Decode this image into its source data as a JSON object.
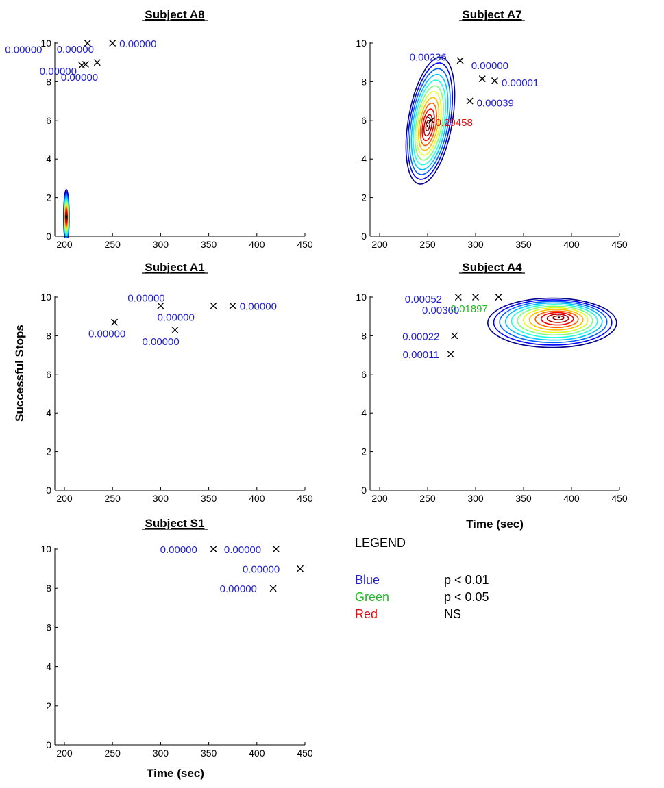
{
  "figure": {
    "ylabel": "Successful Stops",
    "xlabel": "Time (sec)"
  },
  "legend": {
    "title": "LEGEND",
    "entries": [
      {
        "label": "Blue",
        "desc": "p < 0.01",
        "color": "#1f1fd0"
      },
      {
        "label": "Green",
        "desc": "p < 0.05",
        "color": "#22bb22"
      },
      {
        "label": "Red",
        "desc": "NS",
        "color": "#dd1111"
      }
    ]
  },
  "chart_data": [
    {
      "type": "scatter",
      "title": "Subject A8",
      "xlabel": "",
      "ylabel": "",
      "xlim": [
        190,
        450
      ],
      "ylim": [
        0,
        10
      ],
      "xticks": [
        200,
        250,
        300,
        350,
        400,
        450
      ],
      "yticks": [
        0,
        2,
        4,
        6,
        8,
        10
      ],
      "points": [
        {
          "x": 224,
          "y": 10,
          "p": "0.00000",
          "sig": "blue"
        },
        {
          "x": 250,
          "y": 10,
          "p": "0.00000",
          "sig": "blue"
        },
        {
          "x": 234,
          "y": 9,
          "p": "0.00000",
          "sig": "blue"
        },
        {
          "x": 218,
          "y": 8.85,
          "p": "0.00000",
          "sig": "blue"
        },
        {
          "x": 222,
          "y": 8.9,
          "p": "0.00000",
          "sig": "blue"
        }
      ],
      "density_peak": {
        "x": 202,
        "y": 1.0
      }
    },
    {
      "type": "scatter",
      "title": "Subject A7",
      "xlabel": "",
      "ylabel": "",
      "xlim": [
        190,
        450
      ],
      "ylim": [
        0,
        10
      ],
      "xticks": [
        200,
        250,
        300,
        350,
        400,
        450
      ],
      "yticks": [
        0,
        2,
        4,
        6,
        8,
        10
      ],
      "points": [
        {
          "x": 284,
          "y": 9.1,
          "p": "0.00236",
          "sig": "blue"
        },
        {
          "x": 307,
          "y": 8.15,
          "p": "0.00000",
          "sig": "blue"
        },
        {
          "x": 320,
          "y": 8.05,
          "p": "0.00001",
          "sig": "blue"
        },
        {
          "x": 294,
          "y": 7.0,
          "p": "0.00039",
          "sig": "blue"
        },
        {
          "x": 254,
          "y": 6.0,
          "p": "0.29458",
          "sig": "red"
        }
      ],
      "density_peak": {
        "x": 250,
        "y": 5.7
      }
    },
    {
      "type": "scatter",
      "title": "Subject A1",
      "xlabel": "",
      "ylabel": "",
      "xlim": [
        190,
        450
      ],
      "ylim": [
        0,
        10
      ],
      "xticks": [
        200,
        250,
        300,
        350,
        400,
        450
      ],
      "yticks": [
        0,
        2,
        4,
        6,
        8,
        10
      ],
      "points": [
        {
          "x": 252,
          "y": 8.7,
          "p": "0.00000",
          "sig": "blue"
        },
        {
          "x": 300,
          "y": 9.55,
          "p": "0.00000",
          "sig": "blue"
        },
        {
          "x": 315,
          "y": 8.3,
          "p": "0.00000",
          "sig": "blue"
        },
        {
          "x": 355,
          "y": 9.55,
          "p": "0.00000",
          "sig": "blue"
        },
        {
          "x": 375,
          "y": 9.55,
          "p": "0.00000",
          "sig": "blue"
        }
      ]
    },
    {
      "type": "scatter",
      "title": "Subject A4",
      "xlabel": "Time (sec)",
      "ylabel": "",
      "xlim": [
        190,
        450
      ],
      "ylim": [
        0,
        10
      ],
      "xticks": [
        200,
        250,
        300,
        350,
        400,
        450
      ],
      "yticks": [
        0,
        2,
        4,
        6,
        8,
        10
      ],
      "points": [
        {
          "x": 282,
          "y": 10,
          "p": "0.00052",
          "sig": "blue"
        },
        {
          "x": 300,
          "y": 10,
          "p": "0.00360",
          "sig": "blue"
        },
        {
          "x": 324,
          "y": 10,
          "p": "0.01897",
          "sig": "green"
        },
        {
          "x": 278,
          "y": 8.0,
          "p": "0.00022",
          "sig": "blue"
        },
        {
          "x": 274,
          "y": 7.05,
          "p": "0.00011",
          "sig": "blue"
        }
      ],
      "density_peak": {
        "x": 387,
        "y": 8.95
      }
    },
    {
      "type": "scatter",
      "title": "Subject S1",
      "xlabel": "Time (sec)",
      "ylabel": "",
      "xlim": [
        190,
        450
      ],
      "ylim": [
        0,
        10
      ],
      "xticks": [
        200,
        250,
        300,
        350,
        400,
        450
      ],
      "yticks": [
        0,
        2,
        4,
        6,
        8,
        10
      ],
      "points": [
        {
          "x": 355,
          "y": 10,
          "p": "0.00000",
          "sig": "blue"
        },
        {
          "x": 420,
          "y": 10,
          "p": "0.00000",
          "sig": "blue"
        },
        {
          "x": 445,
          "y": 9.0,
          "p": "0.00000",
          "sig": "blue"
        },
        {
          "x": 417,
          "y": 8.0,
          "p": "0.00000",
          "sig": "blue"
        }
      ]
    }
  ]
}
